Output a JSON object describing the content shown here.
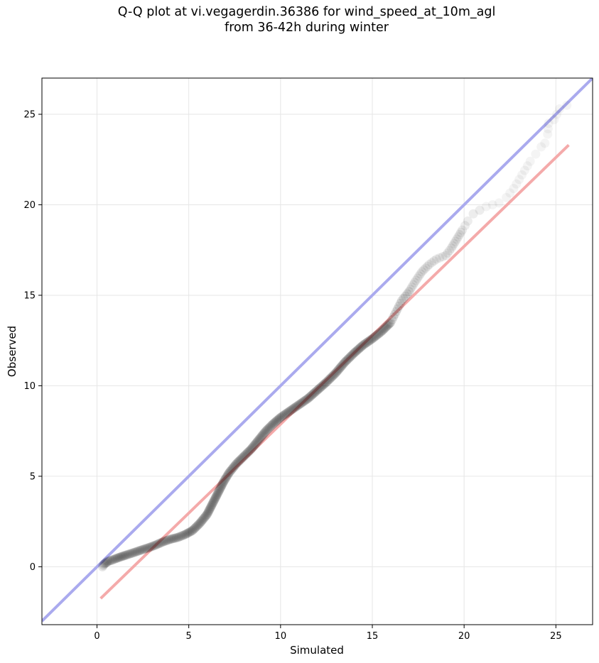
{
  "chart_data": {
    "type": "scatter",
    "title_line1": "Q-Q plot at vi.vegagerdin.36386 for wind_speed_at_10m_agl",
    "title_line2": "from 36-42h during winter",
    "xlabel": "Simulated",
    "ylabel": "Observed",
    "xlim": [
      -3,
      27
    ],
    "ylim": [
      -3.2,
      27
    ],
    "xticks": [
      0,
      5,
      10,
      15,
      20,
      25
    ],
    "yticks": [
      0,
      5,
      10,
      15,
      20,
      25
    ],
    "grid": true,
    "identity_line": {
      "color": "#aaaaee",
      "from": [
        -3,
        -3
      ],
      "to": [
        27,
        27
      ]
    },
    "fit_line": {
      "color": "#f4aaaa",
      "from": [
        0.2,
        -1.75
      ],
      "to": [
        25.7,
        23.3
      ]
    },
    "marker_color": "#000000",
    "qq_points": [
      [
        0.3,
        0.0
      ],
      [
        0.35,
        0.08
      ],
      [
        0.4,
        0.15
      ],
      [
        0.5,
        0.22
      ],
      [
        0.6,
        0.3
      ],
      [
        0.8,
        0.36
      ],
      [
        1.0,
        0.44
      ],
      [
        1.3,
        0.55
      ],
      [
        1.6,
        0.65
      ],
      [
        2.0,
        0.78
      ],
      [
        2.4,
        0.92
      ],
      [
        2.8,
        1.05
      ],
      [
        3.2,
        1.2
      ],
      [
        3.6,
        1.38
      ],
      [
        4.0,
        1.52
      ],
      [
        4.4,
        1.62
      ],
      [
        4.8,
        1.78
      ],
      [
        5.2,
        2.0
      ],
      [
        5.6,
        2.4
      ],
      [
        6.0,
        2.9
      ],
      [
        6.3,
        3.5
      ],
      [
        6.6,
        4.1
      ],
      [
        6.9,
        4.7
      ],
      [
        7.2,
        5.2
      ],
      [
        7.6,
        5.7
      ],
      [
        8.0,
        6.1
      ],
      [
        8.4,
        6.5
      ],
      [
        8.8,
        7.0
      ],
      [
        9.2,
        7.5
      ],
      [
        9.6,
        7.9
      ],
      [
        10.0,
        8.25
      ],
      [
        10.5,
        8.6
      ],
      [
        11.0,
        8.95
      ],
      [
        11.5,
        9.3
      ],
      [
        12.0,
        9.75
      ],
      [
        12.5,
        10.2
      ],
      [
        13.0,
        10.7
      ],
      [
        13.5,
        11.3
      ],
      [
        14.0,
        11.8
      ],
      [
        14.5,
        12.25
      ],
      [
        15.0,
        12.6
      ],
      [
        15.5,
        13.0
      ],
      [
        16.0,
        13.5
      ],
      [
        16.3,
        14.1
      ],
      [
        16.6,
        14.7
      ],
      [
        17.0,
        15.2
      ],
      [
        17.3,
        15.7
      ],
      [
        17.7,
        16.3
      ],
      [
        18.1,
        16.7
      ],
      [
        18.5,
        17.0
      ],
      [
        19.0,
        17.2
      ],
      [
        19.3,
        17.6
      ],
      [
        19.6,
        18.1
      ],
      [
        19.9,
        18.6
      ],
      [
        20.2,
        19.1
      ],
      [
        20.5,
        19.5
      ],
      [
        21.2,
        19.9
      ],
      [
        21.9,
        20.1
      ],
      [
        22.3,
        20.4
      ],
      [
        22.7,
        20.9
      ],
      [
        23.0,
        21.4
      ],
      [
        23.3,
        21.9
      ],
      [
        23.6,
        22.4
      ],
      [
        23.9,
        22.8
      ],
      [
        24.2,
        23.2
      ],
      [
        24.4,
        23.4
      ],
      [
        24.55,
        23.9
      ],
      [
        24.6,
        24.5
      ],
      [
        24.9,
        24.7
      ],
      [
        25.2,
        25.3
      ],
      [
        25.6,
        25.5
      ]
    ]
  }
}
